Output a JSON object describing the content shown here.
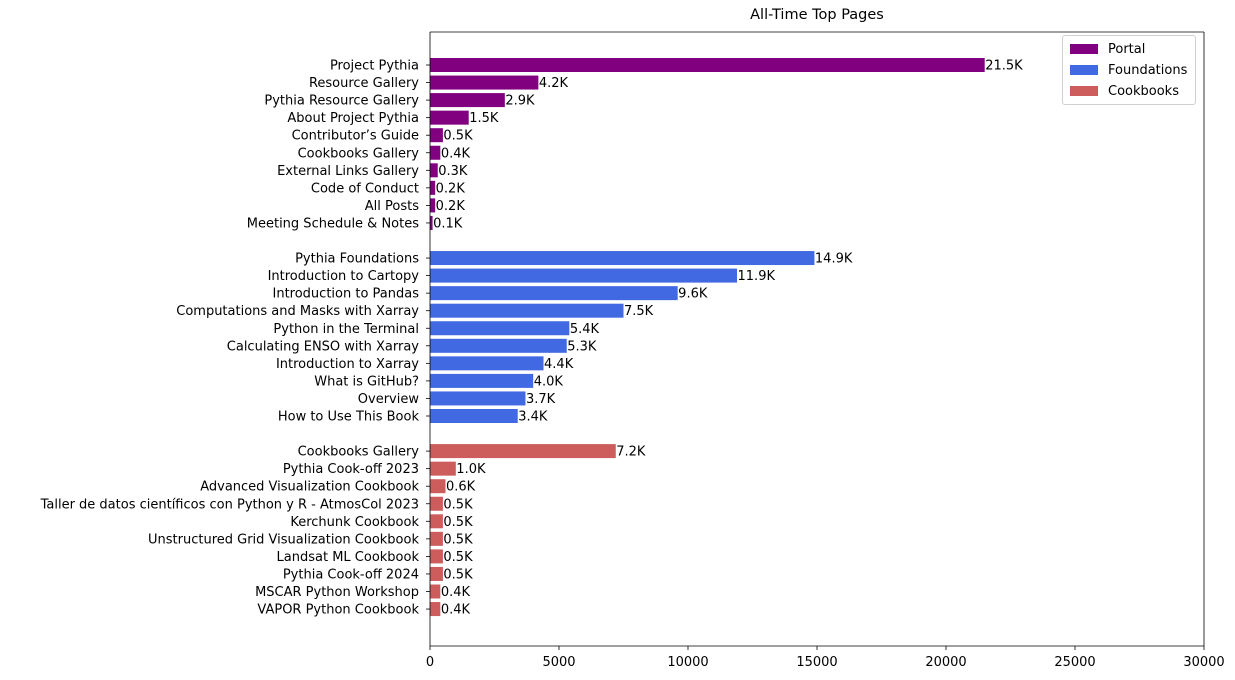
{
  "chart_data": {
    "type": "bar",
    "orientation": "horizontal",
    "title": "All-Time Top Pages",
    "xlabel": "",
    "ylabel": "",
    "xlim": [
      0,
      30000
    ],
    "xticks": [
      0,
      5000,
      10000,
      15000,
      20000,
      25000,
      30000
    ],
    "grid": false,
    "legend_position": "top-right",
    "series": [
      {
        "name": "Portal",
        "color": "#800080",
        "categories": [
          "Project Pythia",
          "Resource Gallery",
          "Pythia Resource Gallery",
          "About Project Pythia",
          "Contributor’s Guide",
          "Cookbooks Gallery",
          "External Links Gallery",
          "Code of Conduct",
          "All Posts",
          "Meeting Schedule & Notes"
        ],
        "values": [
          21500,
          4200,
          2900,
          1500,
          500,
          400,
          300,
          200,
          200,
          100
        ],
        "labels": [
          "21.5K",
          "4.2K",
          "2.9K",
          "1.5K",
          "0.5K",
          "0.4K",
          "0.3K",
          "0.2K",
          "0.2K",
          "0.1K"
        ]
      },
      {
        "name": "Foundations",
        "color": "#4169e1",
        "categories": [
          "Pythia Foundations",
          "Introduction to Cartopy",
          "Introduction to Pandas",
          "Computations and Masks with Xarray",
          "Python in the Terminal",
          "Calculating ENSO with Xarray",
          "Introduction to Xarray",
          "What is GitHub?",
          "Overview",
          "How to Use This Book"
        ],
        "values": [
          14900,
          11900,
          9600,
          7500,
          5400,
          5300,
          4400,
          4000,
          3700,
          3400
        ],
        "labels": [
          "14.9K",
          "11.9K",
          "9.6K",
          "7.5K",
          "5.4K",
          "5.3K",
          "4.4K",
          "4.0K",
          "3.7K",
          "3.4K"
        ]
      },
      {
        "name": "Cookbooks",
        "color": "#cd5c5c",
        "categories": [
          "Cookbooks Gallery",
          "Pythia Cook-off 2023",
          "Advanced Visualization Cookbook",
          "Taller de datos científicos con Python y R - AtmosCol 2023",
          "Kerchunk Cookbook",
          "Unstructured Grid Visualization Cookbook",
          "Landsat ML Cookbook",
          "Pythia Cook-off 2024",
          "MSCAR Python Workshop",
          "VAPOR Python Cookbook"
        ],
        "values": [
          7200,
          1000,
          600,
          500,
          500,
          500,
          500,
          500,
          400,
          400
        ],
        "labels": [
          "7.2K",
          "1.0K",
          "0.6K",
          "0.5K",
          "0.5K",
          "0.5K",
          "0.5K",
          "0.5K",
          "0.4K",
          "0.4K"
        ]
      }
    ]
  }
}
